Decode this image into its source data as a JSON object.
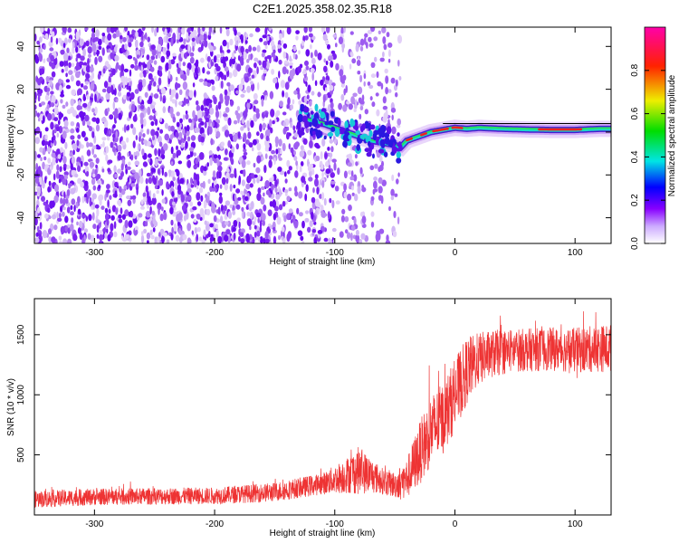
{
  "title": "C2E1.2025.358.02.35.R18",
  "chart_data": [
    {
      "type": "heatmap",
      "panel": "spectrogram",
      "xlabel": "Height of straight line (km)",
      "ylabel": "Frequency (Hz)",
      "xlim": [
        -350,
        130
      ],
      "ylim": [
        -52,
        49
      ],
      "x_ticks": [
        -300,
        -200,
        -100,
        0,
        100
      ],
      "y_ticks": [
        -40,
        -20,
        0,
        20,
        40
      ],
      "x_tick_labels": [
        "-300",
        "-200",
        "-100",
        "0",
        "100"
      ],
      "y_tick_labels": [
        "-40",
        "-20",
        "0",
        "20",
        "40"
      ],
      "noise_region_x": [
        -350,
        -45
      ],
      "signal_track": {
        "x": [
          -125,
          -110,
          -95,
          -80,
          -70,
          -60,
          -50,
          -45,
          -40,
          -30,
          -20,
          -10,
          0,
          10,
          20,
          40,
          60,
          80,
          100,
          120,
          130
        ],
        "y": [
          6,
          4,
          1,
          -2,
          -4,
          -5,
          -6,
          -7,
          -4,
          -2,
          0,
          1,
          2,
          1.5,
          2,
          1.5,
          1.2,
          1,
          1,
          1.5,
          1.5
        ]
      },
      "colorbar": {
        "label": "Normalized spectral amplitude",
        "range": [
          0,
          1
        ],
        "ticks": [
          0.0,
          0.2,
          0.4,
          0.6,
          0.8
        ],
        "tick_labels": [
          "0.0",
          "0.2",
          "0.4",
          "0.6",
          "0.8"
        ],
        "colormap_stops": [
          "#ffffff",
          "#8800ff",
          "#0000ff",
          "#00e5e5",
          "#00dd00",
          "#eeee00",
          "#ff2200",
          "#ff00aa"
        ]
      }
    },
    {
      "type": "line",
      "panel": "snr",
      "xlabel": "Height of straight line (km)",
      "ylabel": "SNR (10 * v/v)",
      "xlim": [
        -350,
        130
      ],
      "ylim": [
        0,
        1800
      ],
      "x_ticks": [
        -300,
        -200,
        -100,
        0,
        100
      ],
      "y_ticks": [
        500,
        1000,
        1500
      ],
      "x_tick_labels": [
        "-300",
        "-200",
        "-100",
        "0",
        "100"
      ],
      "y_tick_labels": [
        "500",
        "1000",
        "1500"
      ],
      "line_color": "#ee3333",
      "envelope": {
        "x": [
          -350,
          -300,
          -200,
          -150,
          -110,
          -90,
          -80,
          -70,
          -60,
          -50,
          -40,
          -30,
          -20,
          -10,
          0,
          10,
          20,
          30,
          50,
          80,
          100,
          130
        ],
        "y_mean": [
          130,
          150,
          160,
          190,
          260,
          330,
          370,
          330,
          280,
          250,
          300,
          500,
          700,
          800,
          1000,
          1200,
          1300,
          1340,
          1370,
          1380,
          1370,
          1390
        ],
        "y_spread": [
          70,
          70,
          70,
          80,
          90,
          150,
          200,
          150,
          110,
          110,
          170,
          260,
          300,
          300,
          300,
          280,
          220,
          200,
          180,
          180,
          190,
          200
        ]
      }
    }
  ]
}
